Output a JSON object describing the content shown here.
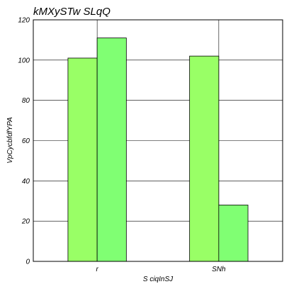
{
  "chart_data": {
    "type": "bar",
    "title": "kMXySTw  SLqQ",
    "xlabel": "S ciqInSJ",
    "ylabel": "VpCycbfdfYPA",
    "categories": [
      "r",
      "SNh"
    ],
    "series": [
      {
        "values": [
          101,
          102
        ],
        "color": "#99ff66"
      },
      {
        "values": [
          111,
          28
        ],
        "color": "#80ff73"
      }
    ],
    "ylim": [
      0,
      120
    ],
    "yticks": [
      0,
      20,
      40,
      60,
      80,
      100,
      120
    ],
    "grid": true,
    "legend": "none"
  }
}
